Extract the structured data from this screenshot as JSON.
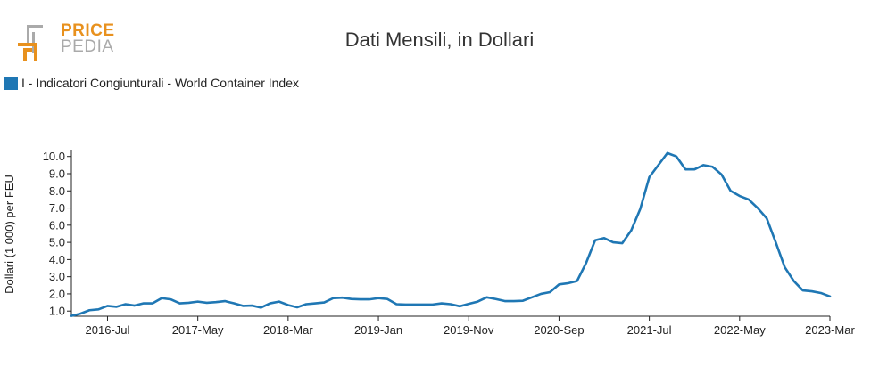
{
  "logo": {
    "top": "PRICE",
    "bottom": "PEDIA"
  },
  "colors": {
    "series": "#1f77b4",
    "logo_orange": "#e8911e",
    "logo_gray": "#aaaaaa"
  },
  "chart_data": {
    "type": "line",
    "title": "Dati Mensili, in Dollari",
    "ylabel": "Dollari (1 000) per FEU",
    "xlabel": "",
    "ylim": [
      0.7,
      10.4
    ],
    "yticks": [
      "1.0",
      "2.0",
      "3.0",
      "4.0",
      "5.0",
      "6.0",
      "7.0",
      "8.0",
      "9.0",
      "10.0"
    ],
    "xtick_labels": [
      "2016-Jul",
      "2017-May",
      "2018-Mar",
      "2019-Jan",
      "2019-Nov",
      "2020-Sep",
      "2021-Jul",
      "2022-May",
      "2023-Mar"
    ],
    "x_start": "2016-Mar",
    "x_end": "2023-Mar",
    "grid": false,
    "legend_position": "top-left",
    "series": [
      {
        "name": "I - Indicatori Congiunturali - World Container Index",
        "color": "#1f77b4",
        "values": [
          0.72,
          0.85,
          1.05,
          1.1,
          1.3,
          1.25,
          1.4,
          1.32,
          1.45,
          1.45,
          1.75,
          1.68,
          1.45,
          1.48,
          1.55,
          1.48,
          1.52,
          1.58,
          1.45,
          1.3,
          1.32,
          1.2,
          1.45,
          1.55,
          1.35,
          1.22,
          1.4,
          1.45,
          1.5,
          1.75,
          1.78,
          1.7,
          1.68,
          1.68,
          1.75,
          1.7,
          1.4,
          1.38,
          1.38,
          1.38,
          1.38,
          1.45,
          1.4,
          1.28,
          1.42,
          1.55,
          1.8,
          1.7,
          1.58,
          1.58,
          1.6,
          1.8,
          2.0,
          2.1,
          2.55,
          2.62,
          2.75,
          3.8,
          5.12,
          5.25,
          5.0,
          4.95,
          5.7,
          6.95,
          8.8,
          9.5,
          10.2,
          10.0,
          9.25,
          9.25,
          9.5,
          9.4,
          8.95,
          8.0,
          7.7,
          7.5,
          7.0,
          6.4,
          5.0,
          3.55,
          2.75,
          2.2,
          2.15,
          2.05,
          1.85
        ]
      }
    ]
  }
}
